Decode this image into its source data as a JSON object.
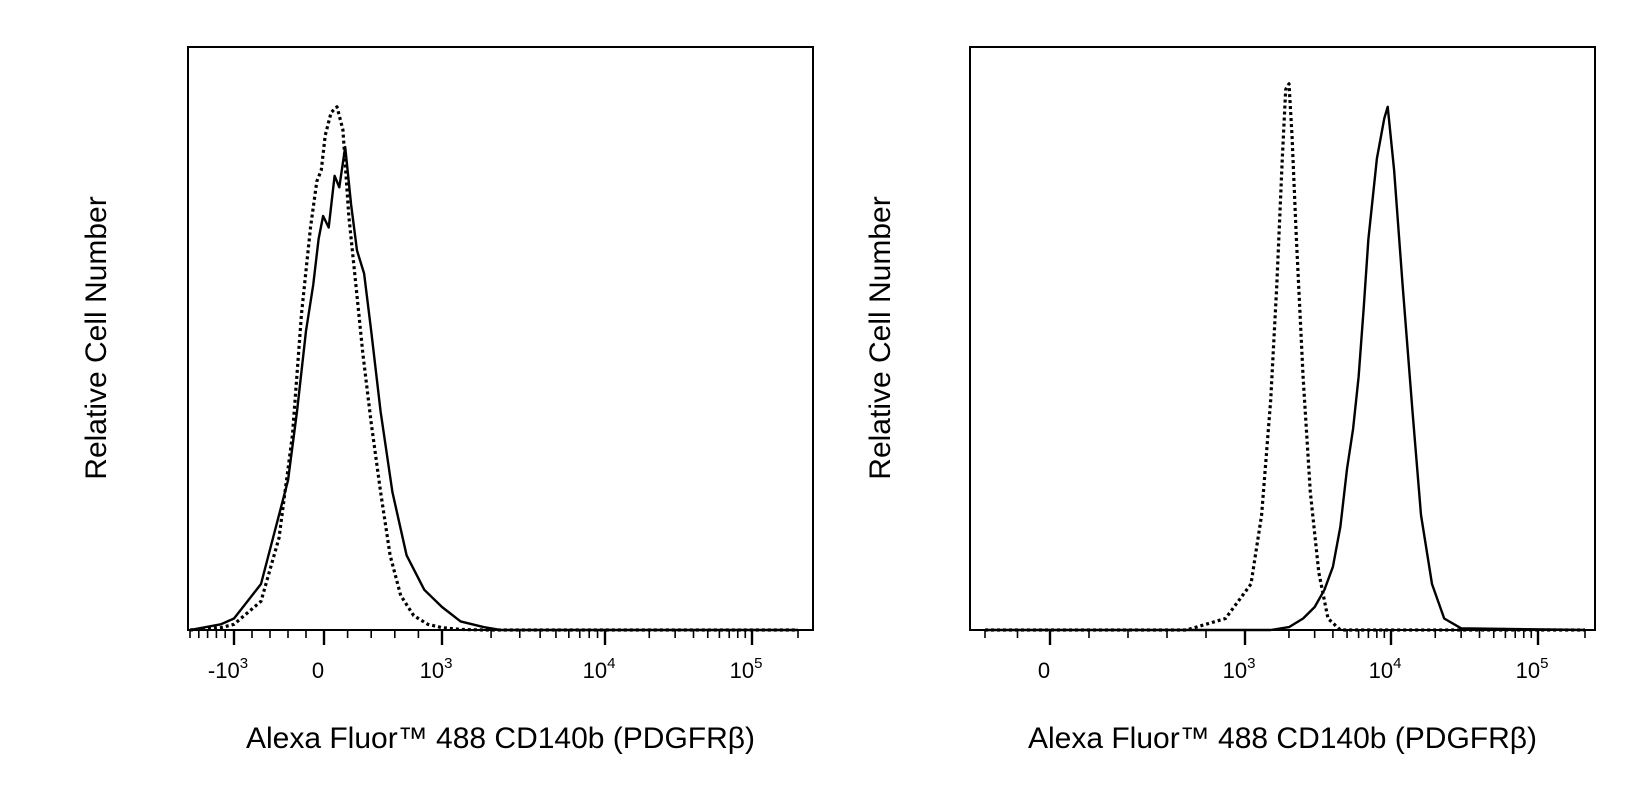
{
  "chart_data": [
    {
      "type": "line",
      "subtype": "flow-cytometry-histogram",
      "x_scale": "biexponential",
      "xlabel": "Alexa Fluor™ 488 CD140b (PDGFRβ)",
      "ylabel": "Relative Cell Number",
      "xlim": [
        -2000,
        200000
      ],
      "ylim": [
        0,
        1.0
      ],
      "grid": false,
      "xticks": [
        {
          "value": -1000,
          "base": "-10",
          "exp": "3"
        },
        {
          "value": 0,
          "base": "0",
          "exp": ""
        },
        {
          "value": 1000,
          "base": "10",
          "exp": "3"
        },
        {
          "value": 10000,
          "base": "10",
          "exp": "4"
        },
        {
          "value": 100000,
          "base": "10",
          "exp": "5"
        }
      ],
      "series": [
        {
          "style": "dashed",
          "x": [
            -2000,
            -1300,
            -1000,
            -700,
            -500,
            -350,
            -250,
            -150,
            -80,
            -30,
            10,
            60,
            110,
            160,
            210,
            270,
            330,
            400,
            480,
            560,
            650,
            760,
            880,
            1000,
            1300,
            1800,
            3000,
            200000
          ],
          "y": [
            0.0,
            0.004,
            0.01,
            0.05,
            0.16,
            0.34,
            0.55,
            0.7,
            0.78,
            0.8,
            0.86,
            0.9,
            0.91,
            0.87,
            0.72,
            0.6,
            0.48,
            0.36,
            0.24,
            0.13,
            0.06,
            0.025,
            0.01,
            0.004,
            0.001,
            0.0,
            0.0,
            0.0
          ]
        },
        {
          "style": "solid",
          "x": [
            -2000,
            -1300,
            -1000,
            -700,
            -500,
            -400,
            -300,
            -200,
            -120,
            -60,
            -10,
            40,
            90,
            130,
            180,
            230,
            280,
            340,
            400,
            480,
            580,
            700,
            850,
            1000,
            1300,
            1800,
            2300,
            200000
          ],
          "y": [
            0.0,
            0.01,
            0.02,
            0.08,
            0.2,
            0.26,
            0.38,
            0.52,
            0.6,
            0.68,
            0.72,
            0.7,
            0.79,
            0.77,
            0.84,
            0.74,
            0.66,
            0.62,
            0.52,
            0.38,
            0.24,
            0.13,
            0.07,
            0.04,
            0.015,
            0.005,
            0.0,
            0.0
          ]
        }
      ]
    },
    {
      "type": "line",
      "subtype": "flow-cytometry-histogram",
      "x_scale": "biexponential",
      "xlabel": "Alexa Fluor™ 488 CD140b (PDGFRβ)",
      "ylabel": "Relative Cell Number",
      "xlim": [
        -400,
        200000
      ],
      "ylim": [
        0,
        1.0
      ],
      "grid": false,
      "xticks": [
        {
          "value": 0,
          "base": "0",
          "exp": ""
        },
        {
          "value": 1000,
          "base": "10",
          "exp": "3"
        },
        {
          "value": 10000,
          "base": "10",
          "exp": "4"
        },
        {
          "value": 100000,
          "base": "10",
          "exp": "5"
        }
      ],
      "series": [
        {
          "style": "dashed",
          "x": [
            -400,
            700,
            900,
            1100,
            1300,
            1500,
            1650,
            1800,
            1900,
            2000,
            2100,
            2250,
            2500,
            2800,
            3200,
            3700,
            4500,
            200000
          ],
          "y": [
            0.0,
            0.0,
            0.02,
            0.08,
            0.2,
            0.4,
            0.6,
            0.82,
            0.94,
            0.95,
            0.86,
            0.68,
            0.44,
            0.24,
            0.1,
            0.02,
            0.0,
            0.0
          ]
        },
        {
          "style": "solid",
          "x": [
            -400,
            1500,
            2000,
            2500,
            3000,
            3500,
            4000,
            4500,
            5000,
            5500,
            6000,
            6500,
            7000,
            8000,
            9000,
            9500,
            10500,
            12000,
            14000,
            16000,
            19000,
            23000,
            30000,
            200000
          ],
          "y": [
            0.0,
            0.0,
            0.005,
            0.02,
            0.04,
            0.07,
            0.11,
            0.18,
            0.28,
            0.35,
            0.44,
            0.56,
            0.68,
            0.82,
            0.89,
            0.91,
            0.8,
            0.6,
            0.38,
            0.2,
            0.08,
            0.02,
            0.003,
            0.0
          ]
        }
      ]
    }
  ]
}
